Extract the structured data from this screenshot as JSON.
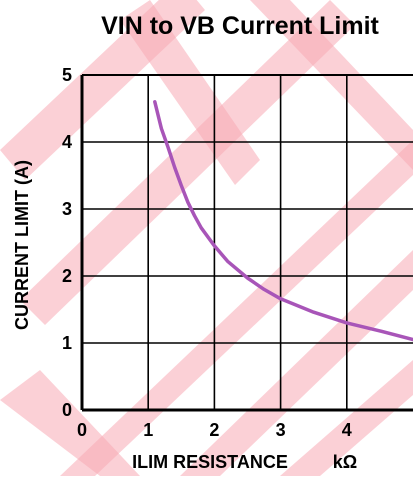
{
  "chart_data": {
    "type": "line",
    "title": "VIN to VB Current Limit",
    "xlabel": "ILIM RESISTANCE",
    "x_unit": "kΩ",
    "ylabel": "CURRENT LIMIT (A)",
    "xlim": [
      0,
      5
    ],
    "ylim": [
      0,
      5
    ],
    "x_ticks": [
      0,
      1,
      2,
      3,
      4
    ],
    "y_ticks": [
      0,
      1,
      2,
      3,
      4,
      5
    ],
    "grid": true,
    "series": [
      {
        "color": "#a855b8",
        "x": [
          1.1,
          1.2,
          1.3,
          1.4,
          1.5,
          1.6,
          1.7,
          1.8,
          2.0,
          2.2,
          2.5,
          2.75,
          3.0,
          3.5,
          4.0,
          4.5,
          5.0
        ],
        "y": [
          4.6,
          4.2,
          3.92,
          3.62,
          3.35,
          3.1,
          2.9,
          2.72,
          2.45,
          2.22,
          1.97,
          1.8,
          1.66,
          1.46,
          1.3,
          1.18,
          1.05
        ]
      }
    ]
  },
  "colors": {
    "curve": "#a855b8",
    "watermark": "#f7a9b5",
    "axis": "#000000",
    "grid": "#000000"
  }
}
